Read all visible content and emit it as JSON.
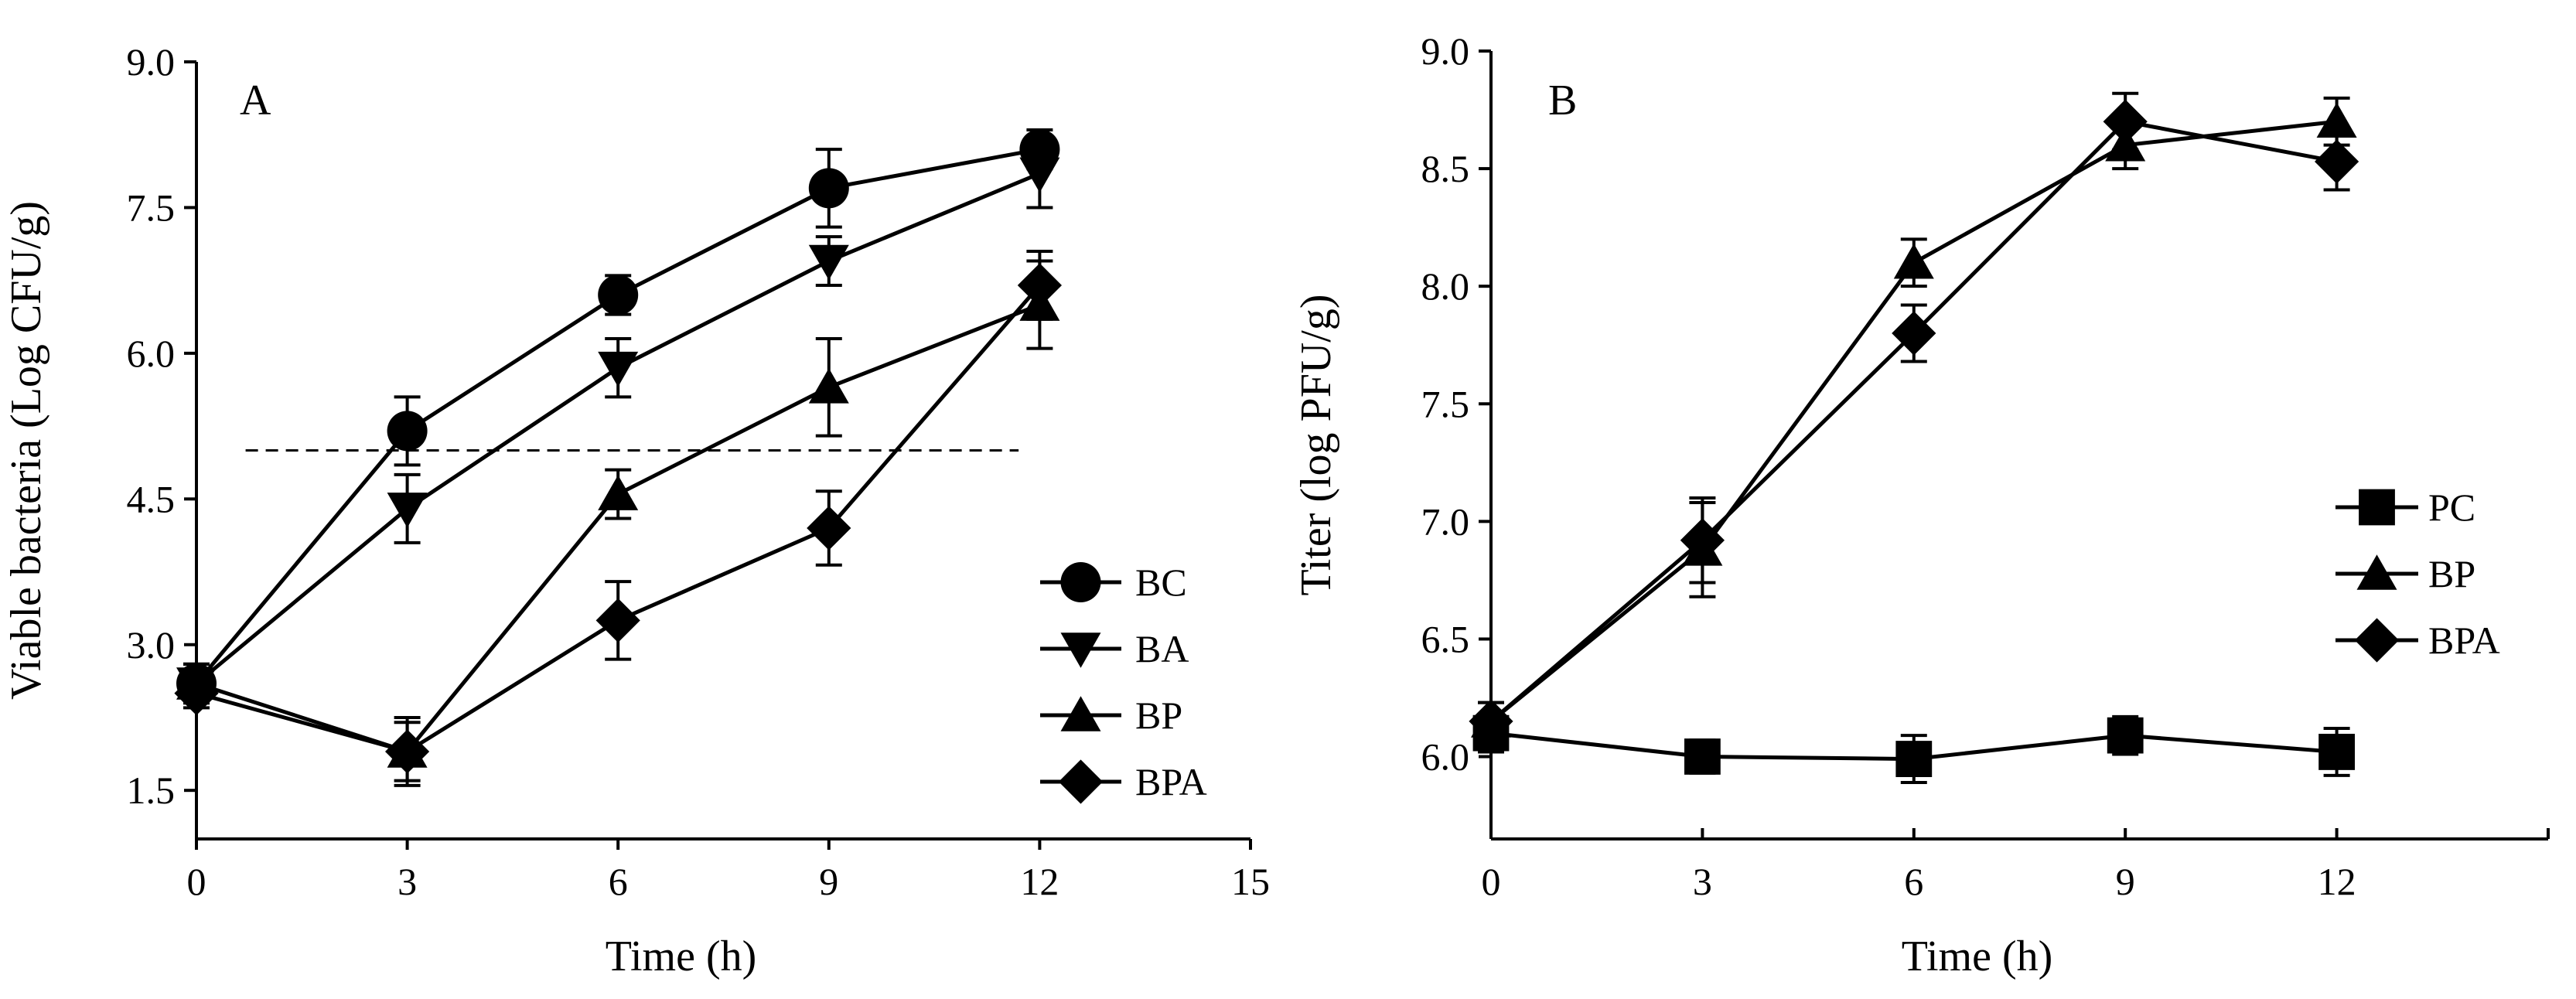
{
  "chart_data": [
    {
      "panel": "A",
      "type": "line",
      "xlabel": "Time (h)",
      "ylabel": "Viable bacteria (Log CFU/g)",
      "xlim": [
        0,
        15
      ],
      "ylim": [
        1.0,
        9.0
      ],
      "xticks": [
        "0",
        "3",
        "6",
        "9",
        "12",
        "15"
      ],
      "yticks": [
        "1.5",
        "3.0",
        "4.5",
        "6.0",
        "7.5",
        "9.0"
      ],
      "legend_position": "bottom-right",
      "reference_line": {
        "y": 5.0,
        "x_start": 0.7,
        "x_end": 11.7,
        "style": "dashed"
      },
      "series": [
        {
          "name": "BC",
          "marker": "circle",
          "x": [
            0,
            3,
            6,
            9,
            12
          ],
          "y": [
            2.6,
            5.2,
            6.6,
            7.7,
            8.1
          ],
          "err": [
            0.2,
            0.35,
            0.2,
            0.4,
            0.2
          ]
        },
        {
          "name": "BA",
          "marker": "triangle-down",
          "x": [
            0,
            3,
            6,
            9,
            12
          ],
          "y": [
            2.6,
            4.4,
            5.85,
            6.95,
            7.85
          ],
          "err": [
            0.2,
            0.35,
            0.3,
            0.25,
            0.35
          ]
        },
        {
          "name": "BP",
          "marker": "triangle-up",
          "x": [
            0,
            3,
            6,
            9,
            12
          ],
          "y": [
            2.6,
            1.9,
            4.55,
            5.65,
            6.5
          ],
          "err": [
            0.2,
            0.35,
            0.25,
            0.5,
            0.45
          ]
        },
        {
          "name": "BPA",
          "marker": "diamond",
          "x": [
            0,
            3,
            6,
            9,
            12
          ],
          "y": [
            2.5,
            1.9,
            3.25,
            4.2,
            6.7
          ],
          "err": [
            0.15,
            0.3,
            0.4,
            0.38,
            0.35
          ]
        }
      ]
    },
    {
      "panel": "B",
      "type": "line",
      "xlabel": "Time (h)",
      "ylabel": "Titer (log PFU/g)",
      "xlim": [
        0,
        15
      ],
      "ylim": [
        5.65,
        9.0
      ],
      "xticks": [
        "0",
        "3",
        "6",
        "9",
        "12"
      ],
      "yticks": [
        "6.0",
        "6.5",
        "7.0",
        "7.5",
        "8.0",
        "8.5",
        "9.0"
      ],
      "legend_position": "right",
      "series": [
        {
          "name": "PC",
          "marker": "square",
          "x": [
            0,
            3,
            6,
            9,
            12
          ],
          "y": [
            6.1,
            6.0,
            5.99,
            6.09,
            6.02
          ],
          "err": [
            0.08,
            0.07,
            0.1,
            0.08,
            0.1
          ]
        },
        {
          "name": "BP",
          "marker": "triangle-up",
          "x": [
            0,
            3,
            6,
            9,
            12
          ],
          "y": [
            6.15,
            6.88,
            8.1,
            8.6,
            8.7
          ],
          "err": [
            0.08,
            0.2,
            0.1,
            0.1,
            0.1
          ]
        },
        {
          "name": "BPA",
          "marker": "diamond",
          "x": [
            0,
            3,
            6,
            9,
            12
          ],
          "y": [
            6.15,
            6.92,
            7.8,
            8.7,
            8.53
          ],
          "err": [
            0.08,
            0.18,
            0.12,
            0.12,
            0.12
          ]
        }
      ]
    }
  ]
}
